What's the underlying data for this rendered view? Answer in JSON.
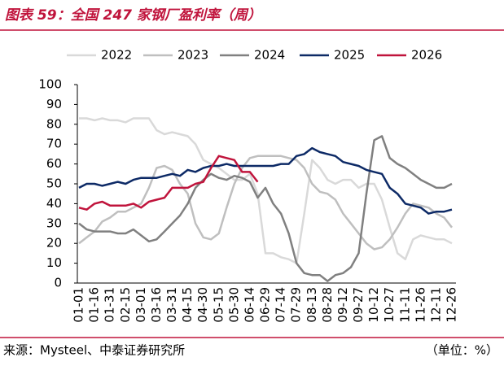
{
  "chart_data": {
    "type": "line",
    "title": "图表 59：全国 247 家钢厂盈利率（周）",
    "source": "来源：Mysteel、中泰证券研究所",
    "unit": "（单位：%）",
    "categories": [
      "01-01",
      null,
      "01-16",
      null,
      "01-31",
      null,
      "02-15",
      null,
      "03-01",
      null,
      "03-16",
      null,
      "03-31",
      null,
      "04-15",
      null,
      "04-30",
      null,
      "05-15",
      null,
      "05-30",
      null,
      "06-14",
      null,
      "06-29",
      null,
      "07-14",
      null,
      "07-29",
      null,
      "08-13",
      null,
      "08-28",
      null,
      "09-12",
      null,
      "09-27",
      null,
      "10-12",
      null,
      "10-27",
      null,
      "11-11",
      null,
      "11-26",
      null,
      "12-11",
      null,
      "12-26"
    ],
    "series": [
      {
        "name": "2022",
        "color": "#d9d9d9",
        "values": [
          83,
          83,
          82,
          83,
          82,
          82,
          81,
          83,
          83,
          83,
          77,
          75,
          76,
          75,
          74,
          70,
          62,
          60,
          58,
          55,
          52,
          52,
          55,
          45,
          15,
          15,
          13,
          12,
          10,
          35,
          62,
          58,
          52,
          50,
          52,
          52,
          48,
          50,
          50,
          42,
          28,
          15,
          12,
          22,
          24,
          23,
          22,
          22,
          20
        ]
      },
      {
        "name": "2023",
        "color": "#bfbfbf",
        "values": [
          20,
          23,
          26,
          31,
          33,
          36,
          36,
          38,
          40,
          48,
          58,
          59,
          57,
          50,
          45,
          30,
          23,
          22,
          25,
          38,
          50,
          58,
          63,
          64,
          64,
          64,
          64,
          63,
          62,
          58,
          50,
          46,
          45,
          42,
          35,
          30,
          25,
          20,
          17,
          18,
          22,
          28,
          35,
          40,
          39,
          38,
          35,
          33,
          28
        ]
      },
      {
        "name": "2024",
        "color": "#808080",
        "values": [
          30,
          27,
          26,
          26,
          26,
          25,
          25,
          27,
          24,
          21,
          22,
          26,
          30,
          34,
          40,
          48,
          52,
          55,
          53,
          52,
          54,
          53,
          51,
          43,
          48,
          40,
          35,
          25,
          10,
          5,
          4,
          4,
          1,
          4,
          5,
          8,
          15,
          45,
          72,
          74,
          63,
          60,
          58,
          55,
          52,
          50,
          48,
          48,
          50
        ]
      },
      {
        "name": "2025",
        "color": "#0d2a66",
        "values": [
          48,
          50,
          50,
          49,
          50,
          51,
          50,
          52,
          53,
          53,
          53,
          54,
          55,
          54,
          57,
          56,
          58,
          59,
          59,
          60,
          59,
          59,
          59,
          59,
          59,
          59,
          60,
          60,
          64,
          65,
          68,
          66,
          65,
          64,
          61,
          60,
          59,
          57,
          56,
          55,
          48,
          45,
          40,
          39,
          38,
          35,
          36,
          36,
          37
        ]
      },
      {
        "name": "2026",
        "color": "#c0143c",
        "values": [
          38,
          37,
          40,
          41,
          39,
          39,
          39,
          40,
          38,
          41,
          42,
          43,
          48,
          48,
          48,
          50,
          51,
          58,
          64,
          63,
          62,
          56,
          56,
          51,
          null,
          null,
          null,
          null,
          null,
          null,
          null,
          null,
          null,
          null,
          null,
          null,
          null,
          null,
          null,
          null,
          null,
          null,
          null,
          null,
          null,
          null,
          null,
          null,
          null
        ]
      }
    ],
    "ylim": [
      0,
      100
    ],
    "yticks": [
      0,
      10,
      20,
      30,
      40,
      50,
      60,
      70,
      80,
      90,
      100
    ],
    "grid": false
  }
}
